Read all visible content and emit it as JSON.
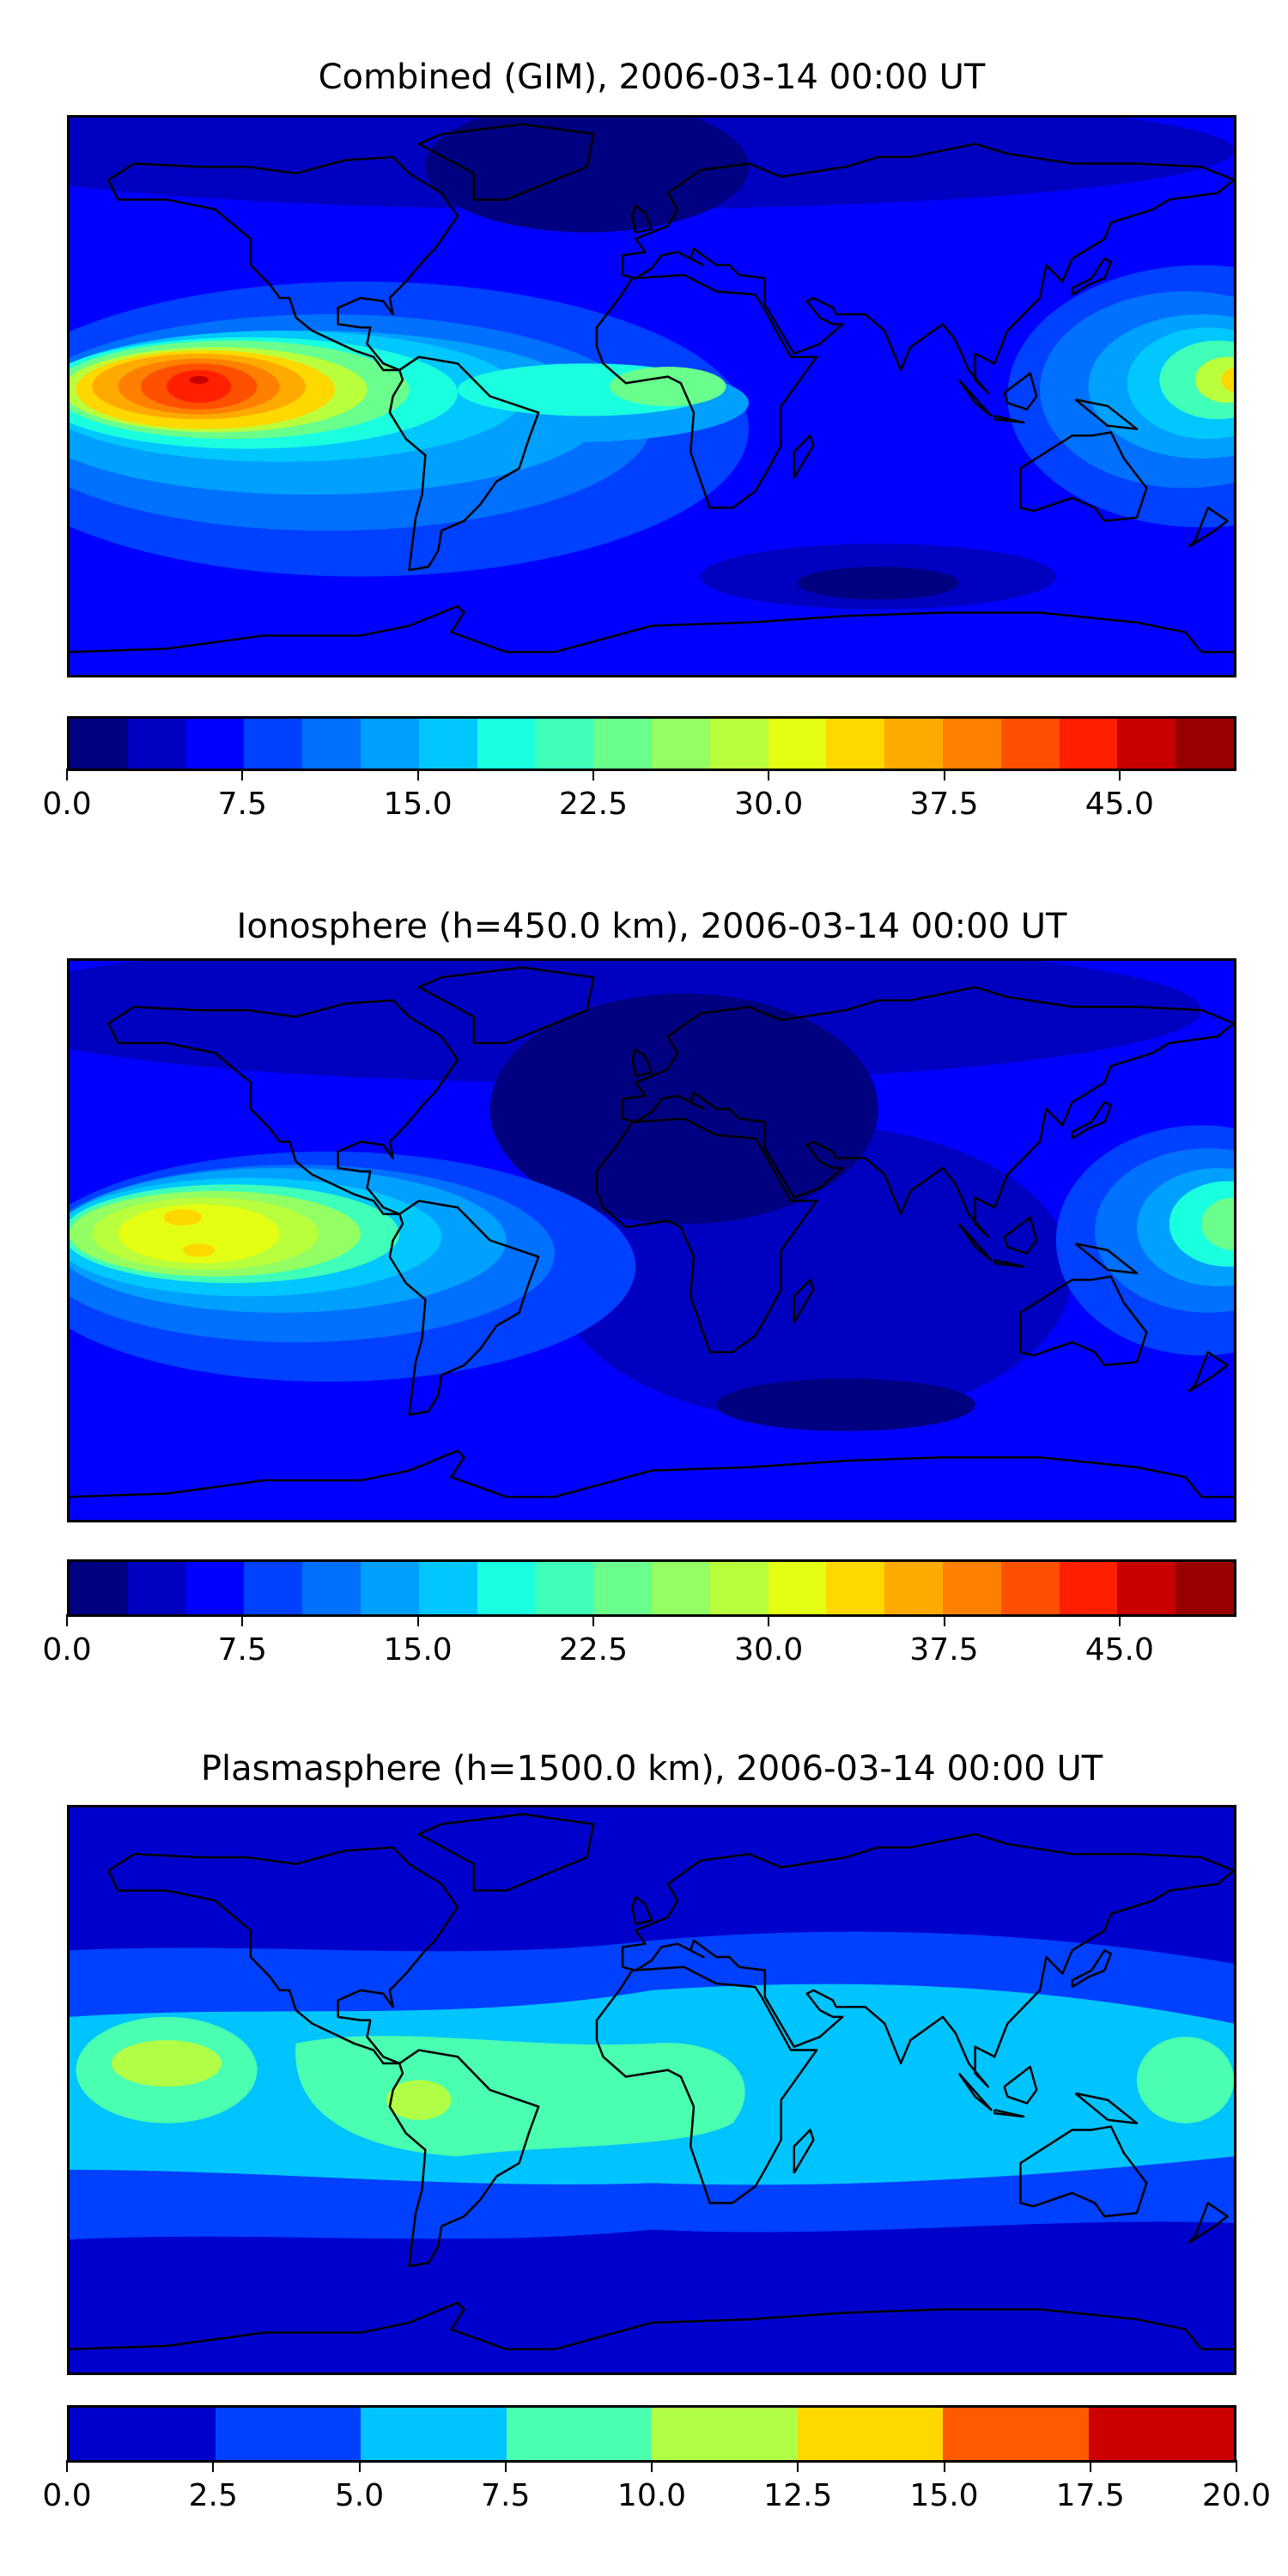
{
  "panels": [
    {
      "title": "Combined (GIM), 2006-03-14 00:00 UT",
      "colorbar": {
        "min": 0,
        "max": 50,
        "step": 2.5,
        "colors": [
          "#000080",
          "#0000c0",
          "#0000ff",
          "#0040ff",
          "#0070ff",
          "#00a0ff",
          "#00c8ff",
          "#1affe0",
          "#40ffb8",
          "#6aff8c",
          "#94ff62",
          "#baff3c",
          "#e4ff13",
          "#ffd800",
          "#ffaa00",
          "#ff8000",
          "#ff5000",
          "#ff2000",
          "#c80000",
          "#990000"
        ],
        "ticks": [
          0,
          7.5,
          15,
          22.5,
          30,
          37.5,
          45
        ],
        "tick_labels": [
          "0.0",
          "7.5",
          "15.0",
          "22.5",
          "30.0",
          "37.5",
          "45.0"
        ]
      }
    },
    {
      "title": "Ionosphere  (h=450.0 km), 2006-03-14 00:00 UT",
      "colorbar": {
        "min": 0,
        "max": 50,
        "step": 2.5,
        "colors": [
          "#000080",
          "#0000c0",
          "#0000ff",
          "#0040ff",
          "#0070ff",
          "#00a0ff",
          "#00c8ff",
          "#1affe0",
          "#40ffb8",
          "#6aff8c",
          "#94ff62",
          "#baff3c",
          "#e4ff13",
          "#ffd800",
          "#ffaa00",
          "#ff8000",
          "#ff5000",
          "#ff2000",
          "#c80000",
          "#990000"
        ],
        "ticks": [
          0,
          7.5,
          15,
          22.5,
          30,
          37.5,
          45
        ],
        "tick_labels": [
          "0.0",
          "7.5",
          "15.0",
          "22.5",
          "30.0",
          "37.5",
          "45.0"
        ]
      }
    },
    {
      "title": "Plasmasphere (h=1500.0 km), 2006-03-14 00:00 UT",
      "colorbar": {
        "min": 0,
        "max": 20,
        "step": 2.5,
        "colors": [
          "#0000cc",
          "#0040ff",
          "#00c4ff",
          "#4affb0",
          "#b0ff46",
          "#ffd800",
          "#ff5a00",
          "#cc0000"
        ],
        "ticks": [
          0,
          2.5,
          5,
          7.5,
          10,
          12.5,
          15,
          17.5,
          20
        ],
        "tick_labels": [
          "0.0",
          "2.5",
          "5.0",
          "7.5",
          "10.0",
          "12.5",
          "15.0",
          "17.5",
          "20.0"
        ]
      }
    }
  ],
  "chart_data": [
    {
      "type": "heatmap",
      "title": "Combined (GIM), 2006-03-14 00:00 UT",
      "xlim": [
        -180,
        180
      ],
      "ylim": [
        -85,
        85
      ],
      "colorbar_range": [
        0,
        50
      ],
      "levels_step": 2.5,
      "peaks": [
        {
          "lon": -140,
          "lat": 3,
          "value": 46
        },
        {
          "lon": 178,
          "lat": 5,
          "value": 33
        },
        {
          "lon": 5,
          "lat": 3,
          "value": 26
        }
      ]
    },
    {
      "type": "heatmap",
      "title": "Ionosphere  (h=450.0 km), 2006-03-14 00:00 UT",
      "xlim": [
        -180,
        180
      ],
      "ylim": [
        -85,
        85
      ],
      "colorbar_range": [
        0,
        50
      ],
      "levels_step": 2.5,
      "peaks": [
        {
          "lon": -140,
          "lat": 3,
          "value": 33
        },
        {
          "lon": 178,
          "lat": 5,
          "value": 28
        }
      ]
    },
    {
      "type": "heatmap",
      "title": "Plasmasphere (h=1500.0 km), 2006-03-14 00:00 UT",
      "xlim": [
        -180,
        180
      ],
      "ylim": [
        -85,
        85
      ],
      "colorbar_range": [
        0,
        20
      ],
      "levels_step": 2.5,
      "peaks": [
        {
          "lon": -150,
          "lat": 8,
          "value": 11
        },
        {
          "lon": -65,
          "lat": -3,
          "value": 11
        },
        {
          "lon": 165,
          "lat": 3,
          "value": 10
        }
      ]
    }
  ]
}
